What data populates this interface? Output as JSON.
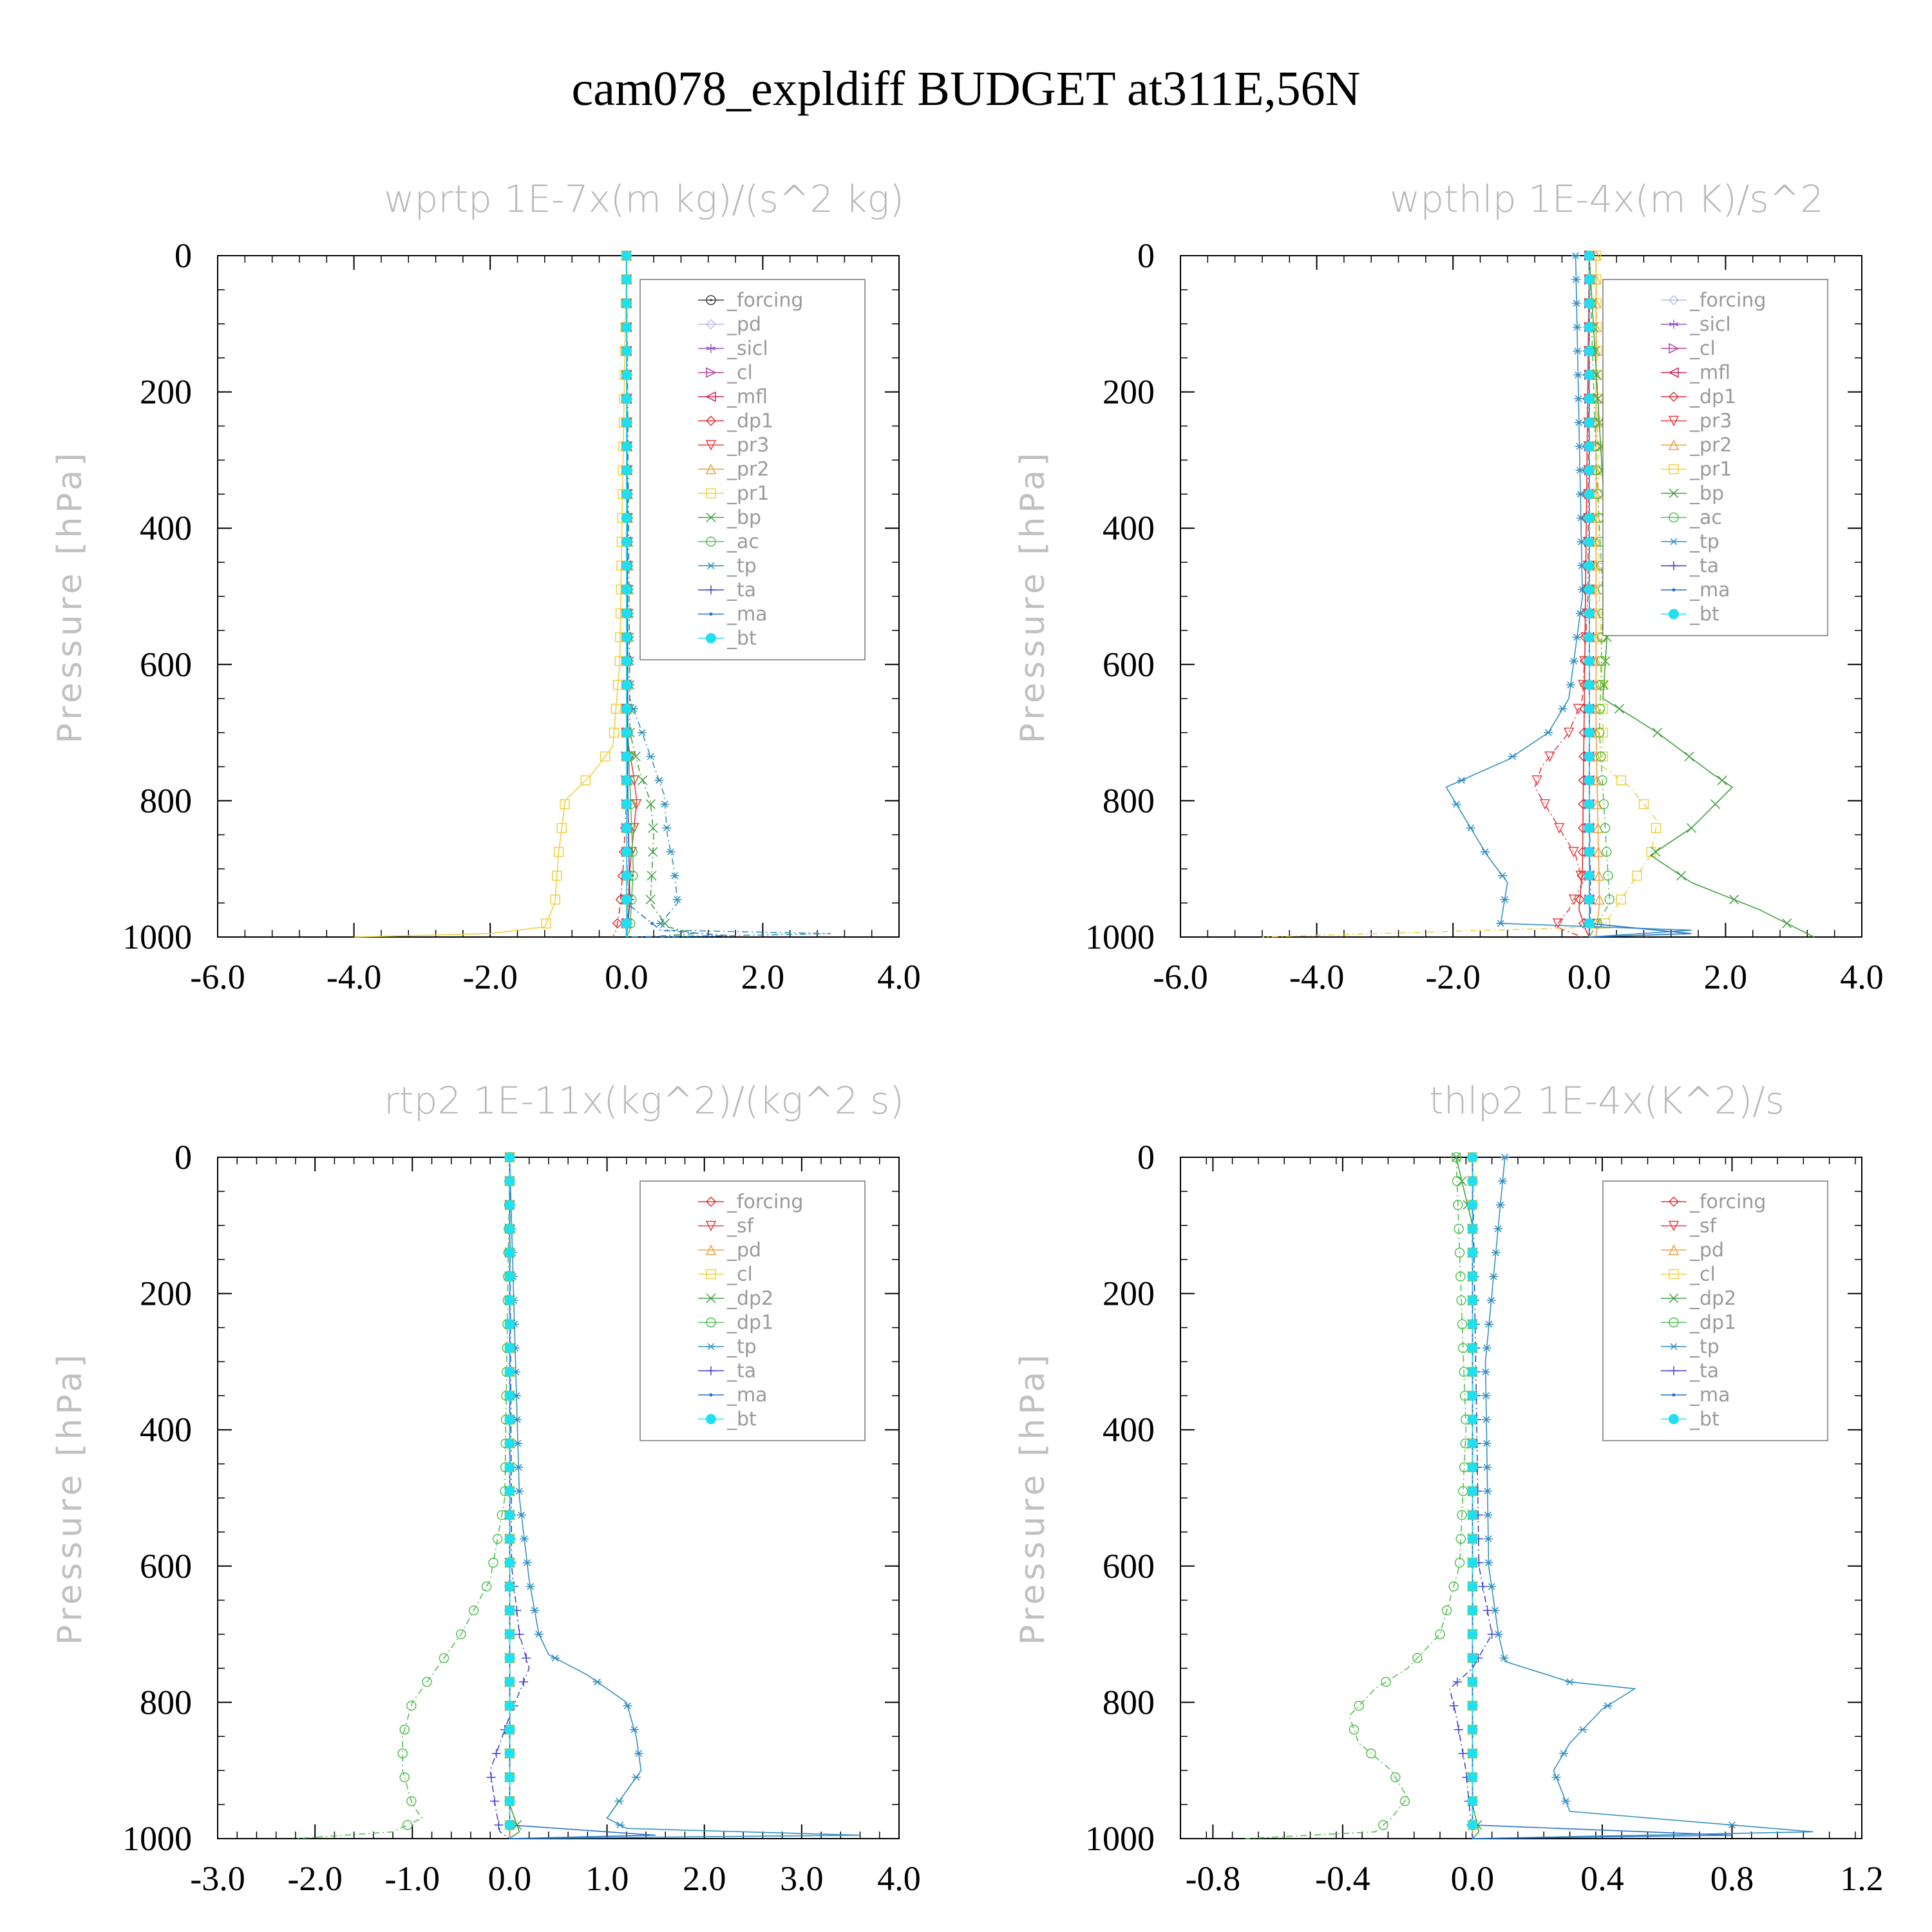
{
  "title": "cam078_expldiff  BUDGET at311E,56N",
  "chart_data": [
    {
      "type": "line",
      "title": "wprtp  1E-7x(m kg)/(s^2 kg)",
      "ylabel": "Pressure [hPa]",
      "xlim": [
        -6.0,
        4.0
      ],
      "ylim": [
        1000,
        0
      ],
      "xticks": [
        "-6.0",
        "-4.0",
        "-2.0",
        "0.0",
        "2.0",
        "4.0"
      ],
      "yticks": [
        "0",
        "200",
        "400",
        "600",
        "800",
        "1000"
      ],
      "legend_position": "top-right",
      "series": [
        {
          "name": "_forcing",
          "color": "#404040",
          "marker": "circle-dot",
          "x": [
            0,
            0
          ],
          "y": [
            0,
            1000
          ]
        },
        {
          "name": "_pd",
          "color": "#b8b8e8",
          "marker": "diamond",
          "x": [
            0,
            0
          ],
          "y": [
            0,
            1000
          ]
        },
        {
          "name": "_sicl",
          "color": "#9b59c6",
          "marker": "star",
          "x": [
            0,
            0
          ],
          "y": [
            0,
            1000
          ]
        },
        {
          "name": "_cl",
          "color": "#b040a0",
          "marker": "tri-right",
          "x": [
            0,
            0
          ],
          "y": [
            0,
            1000
          ]
        },
        {
          "name": "_mfl",
          "color": "#d02050",
          "marker": "tri-left",
          "x": [
            0,
            0
          ],
          "y": [
            0,
            1000
          ]
        },
        {
          "name": "_dp1",
          "color": "#e03030",
          "marker": "diamond",
          "x": [
            0,
            0,
            -0.05,
            -0.1,
            -0.15,
            -0.2
          ],
          "y": [
            0,
            800,
            900,
            960,
            990,
            1000
          ]
        },
        {
          "name": "_pr3",
          "color": "#e84040",
          "marker": "tri-down",
          "x": [
            0,
            0,
            0.1,
            0.15,
            0.05,
            0
          ],
          "y": [
            0,
            700,
            760,
            800,
            900,
            1000
          ]
        },
        {
          "name": "_pr2",
          "color": "#f0a040",
          "marker": "tri-up",
          "x": [
            0,
            0,
            0.02,
            0.0
          ],
          "y": [
            0,
            800,
            950,
            1000
          ]
        },
        {
          "name": "_pr1",
          "color": "#f0d040",
          "marker": "square",
          "x": [
            0,
            -0.1,
            -0.2,
            -0.5,
            -0.9,
            -1.0,
            -1.05,
            -1.2,
            -2.0,
            -4.0
          ],
          "y": [
            0,
            600,
            720,
            760,
            800,
            880,
            950,
            985,
            995,
            1000
          ]
        },
        {
          "name": "_bp",
          "color": "#40a040",
          "marker": "cross",
          "x": [
            0,
            0.05,
            0.2,
            0.35,
            0.4,
            0.35,
            0.6,
            1.0,
            0.3
          ],
          "y": [
            0,
            700,
            760,
            800,
            850,
            950,
            985,
            995,
            1000
          ]
        },
        {
          "name": "_ac",
          "color": "#50c050",
          "marker": "circle",
          "x": [
            0,
            0.02,
            0.1,
            0.05,
            0
          ],
          "y": [
            0,
            700,
            900,
            990,
            1000
          ]
        },
        {
          "name": "_tp",
          "color": "#3090c0",
          "marker": "asterisk",
          "x": [
            0,
            0.05,
            0.3,
            0.55,
            0.6,
            0.7,
            0.75,
            0.5,
            0.6,
            3.0,
            0.5
          ],
          "y": [
            0,
            650,
            720,
            790,
            850,
            900,
            950,
            980,
            990,
            995,
            1000
          ]
        },
        {
          "name": "_ta",
          "color": "#4040d0",
          "marker": "plus",
          "x": [
            0,
            0.02,
            0.05,
            0
          ],
          "y": [
            0,
            800,
            950,
            1000
          ]
        },
        {
          "name": "_ma",
          "color": "#2070d0",
          "marker": "dot",
          "x": [
            0,
            0,
            0.5,
            1.5,
            0
          ],
          "y": [
            0,
            950,
            990,
            998,
            1000
          ]
        },
        {
          "name": "_bt",
          "color": "#20e0f0",
          "marker": "filled-circle",
          "x": [
            0,
            0
          ],
          "y": [
            0,
            1000
          ]
        }
      ]
    },
    {
      "type": "line",
      "title": "wpthlp  1E-4x(m K)/s^2",
      "ylabel": "Pressure [hPa]",
      "xlim": [
        -6.0,
        4.0
      ],
      "ylim": [
        1000,
        0
      ],
      "xticks": [
        "-6.0",
        "-4.0",
        "-2.0",
        "0.0",
        "2.0",
        "4.0"
      ],
      "yticks": [
        "0",
        "200",
        "400",
        "600",
        "800",
        "1000"
      ],
      "legend_position": "top-right",
      "series": [
        {
          "name": "_forcing",
          "color": "#b8b8e8",
          "marker": "diamond",
          "x": [
            0,
            0
          ],
          "y": [
            0,
            1000
          ]
        },
        {
          "name": "_sicl",
          "color": "#9b59c6",
          "marker": "star",
          "x": [
            0,
            0
          ],
          "y": [
            0,
            1000
          ]
        },
        {
          "name": "_cl",
          "color": "#b040a0",
          "marker": "tri-right",
          "x": [
            0,
            0
          ],
          "y": [
            0,
            1000
          ]
        },
        {
          "name": "_mfl",
          "color": "#d02050",
          "marker": "tri-left",
          "x": [
            0,
            0
          ],
          "y": [
            0,
            1000
          ]
        },
        {
          "name": "_dp1",
          "color": "#e03030",
          "marker": "diamond",
          "x": [
            0,
            -0.1,
            -0.15,
            -0.05,
            0
          ],
          "y": [
            0,
            900,
            960,
            990,
            1000
          ]
        },
        {
          "name": "_pr3",
          "color": "#e84040",
          "marker": "tri-down",
          "x": [
            0,
            -0.02,
            -0.1,
            -0.3,
            -0.7,
            -0.8,
            -0.5,
            -0.2,
            -0.1,
            -0.3,
            -0.5,
            -0.1
          ],
          "y": [
            0,
            500,
            650,
            700,
            750,
            780,
            830,
            880,
            920,
            960,
            985,
            1000
          ]
        },
        {
          "name": "_pr2",
          "color": "#f0a040",
          "marker": "tri-up",
          "x": [
            0.1,
            0.1,
            0.15,
            0.1
          ],
          "y": [
            0,
            700,
            950,
            1000
          ]
        },
        {
          "name": "_pr1",
          "color": "#f0d040",
          "marker": "square",
          "x": [
            0.1,
            0.15,
            0.2,
            0.2,
            0.6,
            1.0,
            0.9,
            0.5,
            0.2,
            -4.8
          ],
          "y": [
            0,
            500,
            650,
            750,
            780,
            830,
            880,
            940,
            985,
            1000
          ]
        },
        {
          "name": "_bp",
          "color": "#40a040",
          "marker": "cross",
          "x": [
            0,
            0.3,
            0.2,
            1.0,
            1.8,
            2.1,
            1.5,
            0.9,
            1.5,
            2.5,
            3.3
          ],
          "y": [
            0,
            500,
            650,
            700,
            760,
            780,
            840,
            880,
            920,
            960,
            1000
          ]
        },
        {
          "name": "_ac",
          "color": "#50c050",
          "marker": "circle",
          "x": [
            0,
            0.1,
            0.2,
            0.15,
            0.3,
            0.0
          ],
          "y": [
            0,
            300,
            500,
            700,
            950,
            1000
          ]
        },
        {
          "name": "_tp",
          "color": "#3090c0",
          "marker": "asterisk",
          "x": [
            -0.2,
            -0.1,
            -0.3,
            -0.6,
            -1.2,
            -2.1,
            -1.8,
            -1.5,
            -1.2,
            -1.25,
            -1.3,
            1.5,
            0
          ],
          "y": [
            0,
            500,
            650,
            700,
            740,
            780,
            830,
            880,
            920,
            950,
            980,
            990,
            1000
          ]
        },
        {
          "name": "_ta",
          "color": "#4040d0",
          "marker": "plus",
          "x": [
            0,
            0,
            0.02,
            0
          ],
          "y": [
            0,
            800,
            950,
            1000
          ]
        },
        {
          "name": "_ma",
          "color": "#2070d0",
          "marker": "dot",
          "x": [
            0,
            0,
            1.5,
            0
          ],
          "y": [
            0,
            980,
            995,
            1000
          ]
        },
        {
          "name": "_bt",
          "color": "#20e0f0",
          "marker": "filled-circle",
          "x": [
            0,
            0
          ],
          "y": [
            0,
            1000
          ]
        }
      ]
    },
    {
      "type": "line",
      "title": "rtp2  1E-11x(kg^2)/(kg^2 s)",
      "ylabel": "Pressure [hPa]",
      "xlim": [
        -3.0,
        4.0
      ],
      "ylim": [
        1000,
        0
      ],
      "xticks": [
        "-3.0",
        "-2.0",
        "-1.0",
        "0.0",
        "1.0",
        "2.0",
        "3.0",
        "4.0"
      ],
      "yticks": [
        "0",
        "200",
        "400",
        "600",
        "800",
        "1000"
      ],
      "legend_position": "top-right",
      "series": [
        {
          "name": "_forcing",
          "color": "#e03030",
          "marker": "diamond",
          "x": [
            0,
            0
          ],
          "y": [
            0,
            1000
          ]
        },
        {
          "name": "_sf",
          "color": "#e84040",
          "marker": "tri-down",
          "x": [
            0,
            0
          ],
          "y": [
            0,
            1000
          ]
        },
        {
          "name": "_pd",
          "color": "#f0a040",
          "marker": "tri-up",
          "x": [
            0,
            0
          ],
          "y": [
            0,
            1000
          ]
        },
        {
          "name": "_cl",
          "color": "#f0d040",
          "marker": "square",
          "x": [
            0,
            0
          ],
          "y": [
            0,
            1000
          ]
        },
        {
          "name": "_dp2",
          "color": "#40a040",
          "marker": "cross",
          "x": [
            0,
            0,
            0.1,
            0
          ],
          "y": [
            0,
            950,
            990,
            1000
          ]
        },
        {
          "name": "_dp1",
          "color": "#50c050",
          "marker": "circle",
          "x": [
            0,
            -0.05,
            -0.2,
            -0.5,
            -0.8,
            -1.0,
            -1.1,
            -1.1,
            -1.0,
            -0.9,
            -1.2,
            -2.2
          ],
          "y": [
            0,
            500,
            620,
            700,
            760,
            800,
            850,
            900,
            950,
            970,
            990,
            1000
          ]
        },
        {
          "name": "_tp",
          "color": "#3090c0",
          "marker": "asterisk",
          "x": [
            0,
            0.1,
            0.2,
            0.3,
            0.4,
            0.8,
            1.2,
            1.3,
            1.35,
            1.1,
            1.0,
            1.2,
            3.6,
            0
          ],
          "y": [
            0,
            500,
            620,
            700,
            730,
            760,
            800,
            850,
            900,
            950,
            970,
            985,
            995,
            1000
          ]
        },
        {
          "name": "_ta",
          "color": "#4040d0",
          "marker": "plus",
          "x": [
            0,
            0.02,
            0.1,
            0.2,
            0.0,
            -0.1,
            -0.2,
            -0.15,
            -0.1,
            0
          ],
          "y": [
            0,
            600,
            700,
            750,
            820,
            860,
            900,
            950,
            990,
            1000
          ]
        },
        {
          "name": "_ma",
          "color": "#2070d0",
          "marker": "dot",
          "x": [
            0,
            0,
            1.5,
            0
          ],
          "y": [
            0,
            980,
            995,
            1000
          ]
        },
        {
          "name": "_bt",
          "color": "#20e0f0",
          "marker": "filled-circle",
          "x": [
            0,
            0
          ],
          "y": [
            0,
            1000
          ]
        }
      ]
    },
    {
      "type": "line",
      "title": "thlp2  1E-4x(K^2)/s",
      "ylabel": "Pressure [hPa]",
      "xlim": [
        -0.9,
        1.2
      ],
      "ylim": [
        1000,
        0
      ],
      "xticks": [
        "-0.8",
        "-0.4",
        "0.0",
        "0.4",
        "0.8",
        "1.2"
      ],
      "yticks": [
        "0",
        "200",
        "400",
        "600",
        "800",
        "1000"
      ],
      "legend_position": "top-right",
      "series": [
        {
          "name": "_forcing",
          "color": "#e03030",
          "marker": "diamond",
          "x": [
            0,
            0
          ],
          "y": [
            0,
            1000
          ]
        },
        {
          "name": "_sf",
          "color": "#e84040",
          "marker": "tri-down",
          "x": [
            0,
            0
          ],
          "y": [
            0,
            1000
          ]
        },
        {
          "name": "_pd",
          "color": "#f0a040",
          "marker": "tri-up",
          "x": [
            0,
            0
          ],
          "y": [
            0,
            1000
          ]
        },
        {
          "name": "_cl",
          "color": "#f0d040",
          "marker": "square",
          "x": [
            0,
            0
          ],
          "y": [
            0,
            1000
          ]
        },
        {
          "name": "_dp2",
          "color": "#40a040",
          "marker": "cross",
          "x": [
            -0.05,
            0,
            0,
            0.02,
            0
          ],
          "y": [
            0,
            100,
            950,
            990,
            1000
          ]
        },
        {
          "name": "_dp1",
          "color": "#50c050",
          "marker": "circle",
          "x": [
            -0.05,
            -0.02,
            -0.04,
            -0.1,
            -0.2,
            -0.3,
            -0.38,
            -0.35,
            -0.25,
            -0.2,
            -0.25,
            -0.3,
            -0.7
          ],
          "y": [
            0,
            400,
            600,
            700,
            750,
            780,
            820,
            860,
            900,
            940,
            970,
            990,
            1000
          ]
        },
        {
          "name": "_tp",
          "color": "#3090c0",
          "marker": "asterisk",
          "x": [
            0.1,
            0.04,
            0.05,
            0.08,
            0.1,
            0.3,
            0.5,
            0.4,
            0.3,
            0.25,
            0.3,
            1.05,
            0
          ],
          "y": [
            0,
            300,
            600,
            700,
            740,
            770,
            780,
            810,
            860,
            900,
            960,
            990,
            1000
          ]
        },
        {
          "name": "_ta",
          "color": "#4040d0",
          "marker": "plus",
          "x": [
            0,
            0.02,
            0.06,
            0.0,
            -0.07,
            -0.05,
            -0.02,
            0
          ],
          "y": [
            0,
            600,
            700,
            750,
            780,
            820,
            900,
            1000
          ]
        },
        {
          "name": "_ma",
          "color": "#2070d0",
          "marker": "dot",
          "x": [
            0,
            0,
            0.8,
            0
          ],
          "y": [
            0,
            980,
            995,
            1000
          ]
        },
        {
          "name": "_bt",
          "color": "#20e0f0",
          "marker": "filled-circle",
          "x": [
            0,
            0
          ],
          "y": [
            0,
            1000
          ]
        }
      ]
    }
  ]
}
